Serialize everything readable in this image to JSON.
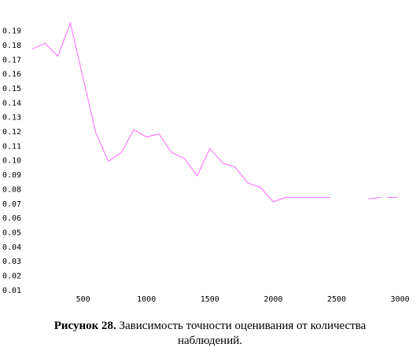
{
  "chart_data": {
    "type": "line",
    "title": "",
    "xlabel": "",
    "ylabel": "",
    "xlim": [
      0,
      3000
    ],
    "ylim": [
      0,
      0.2
    ],
    "grid": false,
    "x_ticks": [
      500,
      1000,
      1500,
      2000,
      2500,
      3000
    ],
    "x_tick_labels": [
      "500",
      "1000",
      "1500",
      "2000",
      "2500",
      "3000"
    ],
    "y_ticks": [
      0.01,
      0.02,
      0.03,
      0.04,
      0.05,
      0.06,
      0.07,
      0.08,
      0.09,
      0.1,
      0.11,
      0.12,
      0.13,
      0.14,
      0.15,
      0.16,
      0.17,
      0.18,
      0.19
    ],
    "y_tick_labels": [
      "0.01",
      "0.02",
      "0.03",
      "0.04",
      "0.05",
      "0.06",
      "0.07",
      "0.08",
      "0.09",
      "0.10",
      "0.11",
      "0.12",
      "0.13",
      "0.14",
      "0.15",
      "0.16",
      "0.17",
      "0.18",
      "0.19"
    ],
    "line_color": "#ff66ff",
    "series": [
      {
        "values": [
          [
            100,
            0.177
          ],
          [
            200,
            0.181
          ],
          [
            300,
            0.172
          ],
          [
            400,
            0.195
          ],
          [
            500,
            0.157
          ],
          [
            600,
            0.119
          ],
          [
            700,
            0.099
          ],
          [
            800,
            0.105
          ],
          [
            900,
            0.121
          ],
          [
            1000,
            0.116
          ],
          [
            1100,
            0.118
          ],
          [
            1200,
            0.105
          ],
          [
            1300,
            0.101
          ],
          [
            1400,
            0.089
          ],
          [
            1500,
            0.108
          ],
          [
            1600,
            0.098
          ],
          [
            1700,
            0.095
          ],
          [
            1800,
            0.084
          ],
          [
            1900,
            0.081
          ],
          [
            2000,
            0.071
          ],
          [
            2100,
            0.074
          ],
          [
            2200,
            0.074
          ],
          [
            2300,
            0.074
          ],
          [
            2400,
            0.074
          ],
          [
            2450,
            0.074
          ]
        ]
      },
      {
        "values": [
          [
            2750,
            0.073
          ],
          [
            2850,
            0.074
          ]
        ]
      },
      {
        "values": [
          [
            2900,
            0.074
          ],
          [
            2980,
            0.074
          ]
        ]
      }
    ]
  },
  "caption": {
    "label": "Рисунок 28.",
    "text": " Зависимость точности оценивания от количества",
    "line2": "наблюдений."
  }
}
